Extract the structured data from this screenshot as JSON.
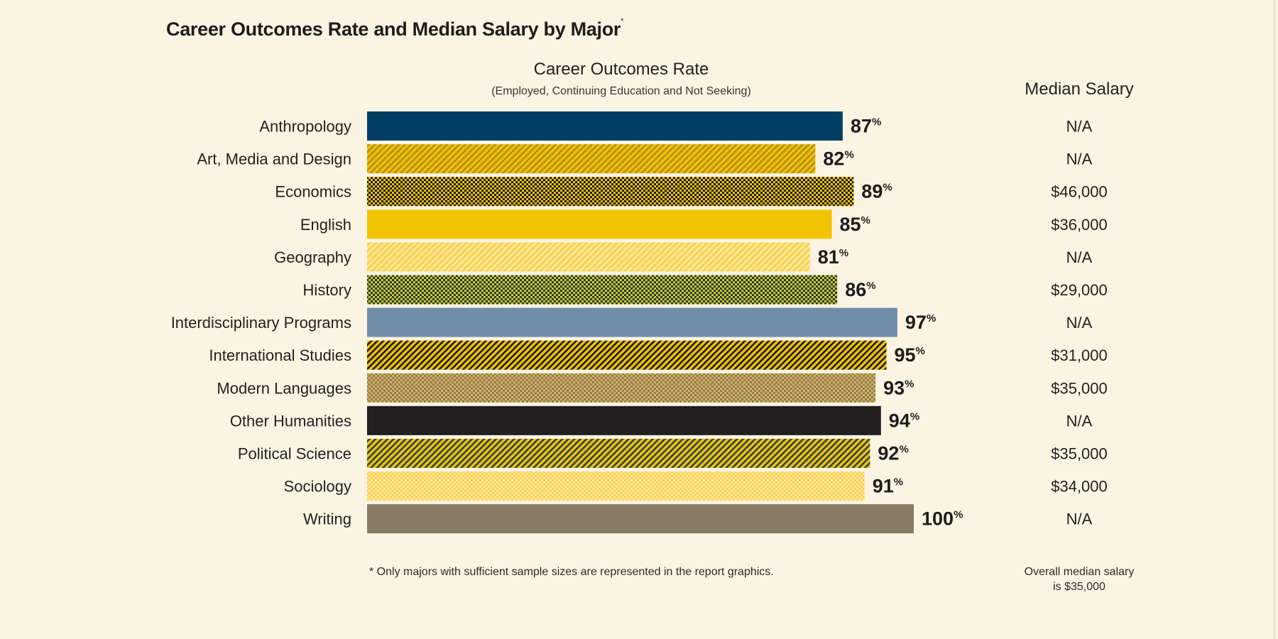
{
  "chart_data": {
    "type": "bar",
    "orientation": "horizontal",
    "title": "Career Outcomes Rate and Median Salary by Major",
    "title_marker": "*",
    "xlabel": "Career Outcomes Rate",
    "xlabel_sub": "(Employed, Continuing Education and Not Seeking)",
    "value_suffix": "%",
    "xlim": [
      0,
      100
    ],
    "salary_header": "Median Salary",
    "categories": [
      "Anthropology",
      "Art, Media and Design",
      "Economics",
      "English",
      "Geography",
      "History",
      "Interdisciplinary Programs",
      "International Studies",
      "Modern Languages",
      "Other Humanities",
      "Political Science",
      "Sociology",
      "Writing"
    ],
    "values": [
      87,
      82,
      89,
      85,
      81,
      86,
      97,
      95,
      93,
      94,
      92,
      91,
      100
    ],
    "salaries": [
      "N/A",
      "N/A",
      "$46,000",
      "$36,000",
      "N/A",
      "$29,000",
      "N/A",
      "$31,000",
      "$35,000",
      "N/A",
      "$35,000",
      "$34,000",
      "N/A"
    ],
    "fills": [
      {
        "style": "solid",
        "color": "#003f63"
      },
      {
        "style": "diagonal",
        "color": "#f2c300",
        "color2": "#b28d22"
      },
      {
        "style": "checker",
        "color": "#f2c300",
        "color2": "#1b1b1b"
      },
      {
        "style": "solid",
        "color": "#f2c300"
      },
      {
        "style": "diagonal",
        "color": "#f8d34f",
        "color2": "#ffe9a6"
      },
      {
        "style": "checker",
        "color": "#f2c300",
        "color2": "#003f63"
      },
      {
        "style": "solid",
        "color": "#6f8ea9"
      },
      {
        "style": "diagonal",
        "color": "#f2c300",
        "color2": "#1c1c22"
      },
      {
        "style": "checker",
        "color": "#d9b24c",
        "color2": "#8a7b67"
      },
      {
        "style": "solid",
        "color": "#231f20"
      },
      {
        "style": "diagonal",
        "color": "#f2c300",
        "color2": "#2a4357"
      },
      {
        "style": "checker",
        "color": "#f8d34f",
        "color2": "#ffe6a0"
      },
      {
        "style": "solid",
        "color": "#8a7b69"
      }
    ]
  },
  "footnote": "* Only majors with sufficient sample sizes are represented in the report graphics.",
  "overall_note": {
    "line1": "Overall median salary",
    "line2": "is $35,000"
  }
}
